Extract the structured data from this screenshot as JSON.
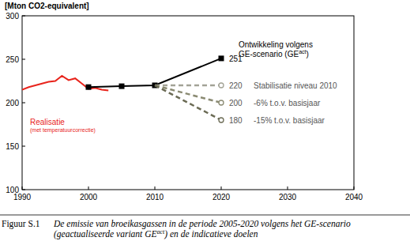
{
  "chart_data": {
    "type": "line",
    "y_label": "[Mton CO2-equivalent]",
    "xlim": [
      1990,
      2040
    ],
    "xticks": [
      1990,
      2000,
      2010,
      2020,
      2030,
      2040
    ],
    "ylim": [
      100,
      300
    ],
    "yticks": [
      100,
      150,
      200,
      250,
      300
    ],
    "grid": false,
    "series": [
      {
        "name": "Realisatie",
        "color": "#e8241c",
        "line_style": "solid",
        "x": [
          1990,
          1991,
          1992,
          1993,
          1994,
          1995,
          1996,
          1997,
          1998,
          1999,
          2000,
          2001,
          2002,
          2003
        ],
        "values": [
          215,
          218,
          220,
          222,
          224,
          225,
          231,
          226,
          228,
          222,
          216,
          217,
          215,
          214
        ]
      },
      {
        "color": "#000000",
        "line_style": "solid",
        "marker": "square",
        "x": [
          2000,
          2005,
          2010,
          2020
        ],
        "values": [
          218,
          219,
          220,
          251
        ]
      },
      {
        "name": "Stabilisatie niveau 2010",
        "color": "#a3a396",
        "line_style": "dashed",
        "marker": "circle",
        "x": [
          2010,
          2020
        ],
        "values": [
          220,
          220
        ]
      },
      {
        "name": "-6% t.o.v. basisjaar",
        "color": "#8a8a72",
        "line_style": "dashed",
        "marker": "circle",
        "x": [
          2010,
          2020
        ],
        "values": [
          220,
          200
        ]
      },
      {
        "name": "-15% t.o.v. basisjaar",
        "color": "#6b6b55",
        "line_style": "dashed",
        "marker": "circle",
        "x": [
          2010,
          2020
        ],
        "values": [
          220,
          180
        ]
      }
    ],
    "annotations": [
      {
        "text": "(met temperatuurcorrectie)"
      },
      {
        "text": "Ontwikkeling volgens"
      },
      {
        "text": "GE-scenario (GE",
        "sup": "act",
        "after": ")"
      }
    ],
    "caption": {
      "label": "Figuur S.1",
      "line1": "De emissie van broeikasgassen in de periode 2005-2020 volgens het GE-scenario",
      "line2": "(geactualiseerde variant GE",
      "line2_sup": "act",
      "line2_after": ") en de indicatieve doelen"
    }
  }
}
